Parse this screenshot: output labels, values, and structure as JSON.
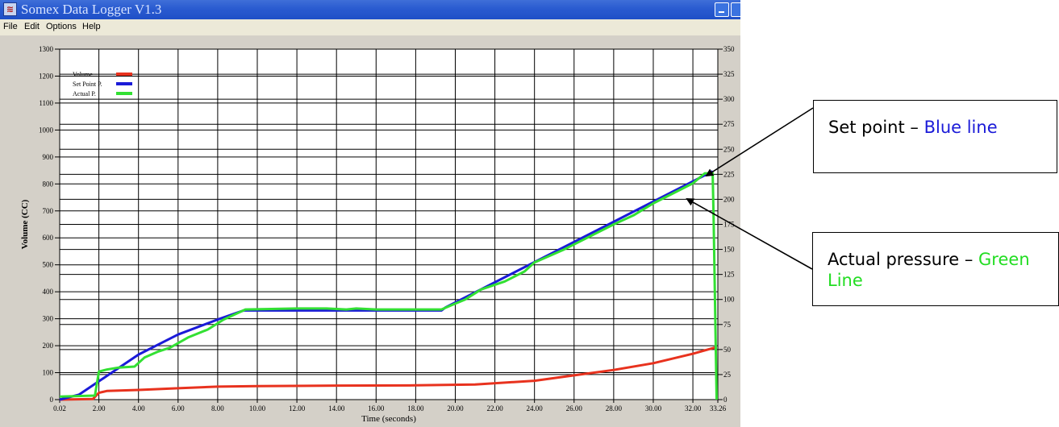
{
  "window": {
    "title": "Somex Data Logger V1.3"
  },
  "menu": [
    "File",
    "Edit",
    "Options",
    "Help"
  ],
  "colors": {
    "volume": "#e8321e",
    "set_point": "#1a1ad8",
    "actual": "#33e033",
    "title_bar": "#2a5bd0"
  },
  "callouts": [
    {
      "text": "Set point – ",
      "highlight": "Blue line",
      "highlight_color": "#1a1ad8"
    },
    {
      "text": "Actual pressure – ",
      "highlight": "Green Line",
      "highlight_color": "#22dd22"
    }
  ],
  "chart_data": {
    "type": "line",
    "xlabel": "Time (seconds)",
    "ylabel": "Volume (CC)",
    "x_ticks": [
      "0.02",
      "2.00",
      "4.00",
      "6.00",
      "8.00",
      "10.00",
      "12.00",
      "14.00",
      "16.00",
      "18.00",
      "20.00",
      "22.00",
      "24.00",
      "26.00",
      "28.00",
      "30.00",
      "32.00",
      "33.26"
    ],
    "xlim": [
      0.02,
      33.26
    ],
    "y_left_ticks": [
      "0",
      "100",
      "200",
      "300",
      "400",
      "500",
      "600",
      "700",
      "800",
      "900",
      "1000",
      "1100",
      "1200",
      "1300"
    ],
    "ylim_left": [
      0,
      1300
    ],
    "y_right_ticks": [
      "0",
      "25",
      "50",
      "75",
      "100",
      "125",
      "150",
      "175",
      "200",
      "225",
      "250",
      "275",
      "300",
      "325",
      "350"
    ],
    "ylim_right": [
      0,
      350
    ],
    "grid": true,
    "legend": {
      "position": "top-left",
      "entries": [
        "Volume",
        "Set Point P.",
        "Actual P."
      ]
    },
    "series": [
      {
        "name": "Volume",
        "color": "#e8321e",
        "axis": "left",
        "x": [
          0.02,
          1.7,
          2.0,
          2.4,
          4,
          6,
          8,
          10,
          14,
          18,
          21,
          24,
          26,
          28,
          30,
          32,
          33.2
        ],
        "y": [
          0,
          2,
          25,
          32,
          36,
          42,
          48,
          50,
          52,
          53,
          56,
          70,
          90,
          110,
          135,
          170,
          195
        ]
      },
      {
        "name": "Set Point P.",
        "color": "#1a1ad8",
        "axis": "right",
        "x": [
          0.02,
          1.0,
          4.0,
          6.0,
          8.0,
          9.3,
          19.3,
          19.5,
          33.0
        ],
        "y": [
          0,
          5,
          45,
          65,
          80,
          89,
          89,
          92,
          228
        ]
      },
      {
        "name": "Actual P.",
        "color": "#33e033",
        "axis": "right",
        "x": [
          0.02,
          1.8,
          2.0,
          2.4,
          3.0,
          3.8,
          4.3,
          5.0,
          5.6,
          6.5,
          7.5,
          8.3,
          9.4,
          12,
          13.5,
          14.5,
          15,
          16,
          17,
          18,
          19.3,
          19.9,
          20.5,
          21.3,
          22.5,
          23.5,
          24,
          25.5,
          27,
          28,
          29,
          30,
          31,
          32,
          32.6,
          33.0,
          33.05,
          33.2
        ],
        "y": [
          3,
          4,
          28,
          30,
          32,
          33,
          42,
          48,
          52,
          62,
          70,
          80,
          90,
          91,
          91,
          90,
          91,
          90,
          90,
          90,
          90,
          95,
          100,
          110,
          118,
          128,
          137,
          150,
          165,
          175,
          184,
          196,
          206,
          216,
          226,
          226,
          180,
          0
        ]
      }
    ]
  }
}
